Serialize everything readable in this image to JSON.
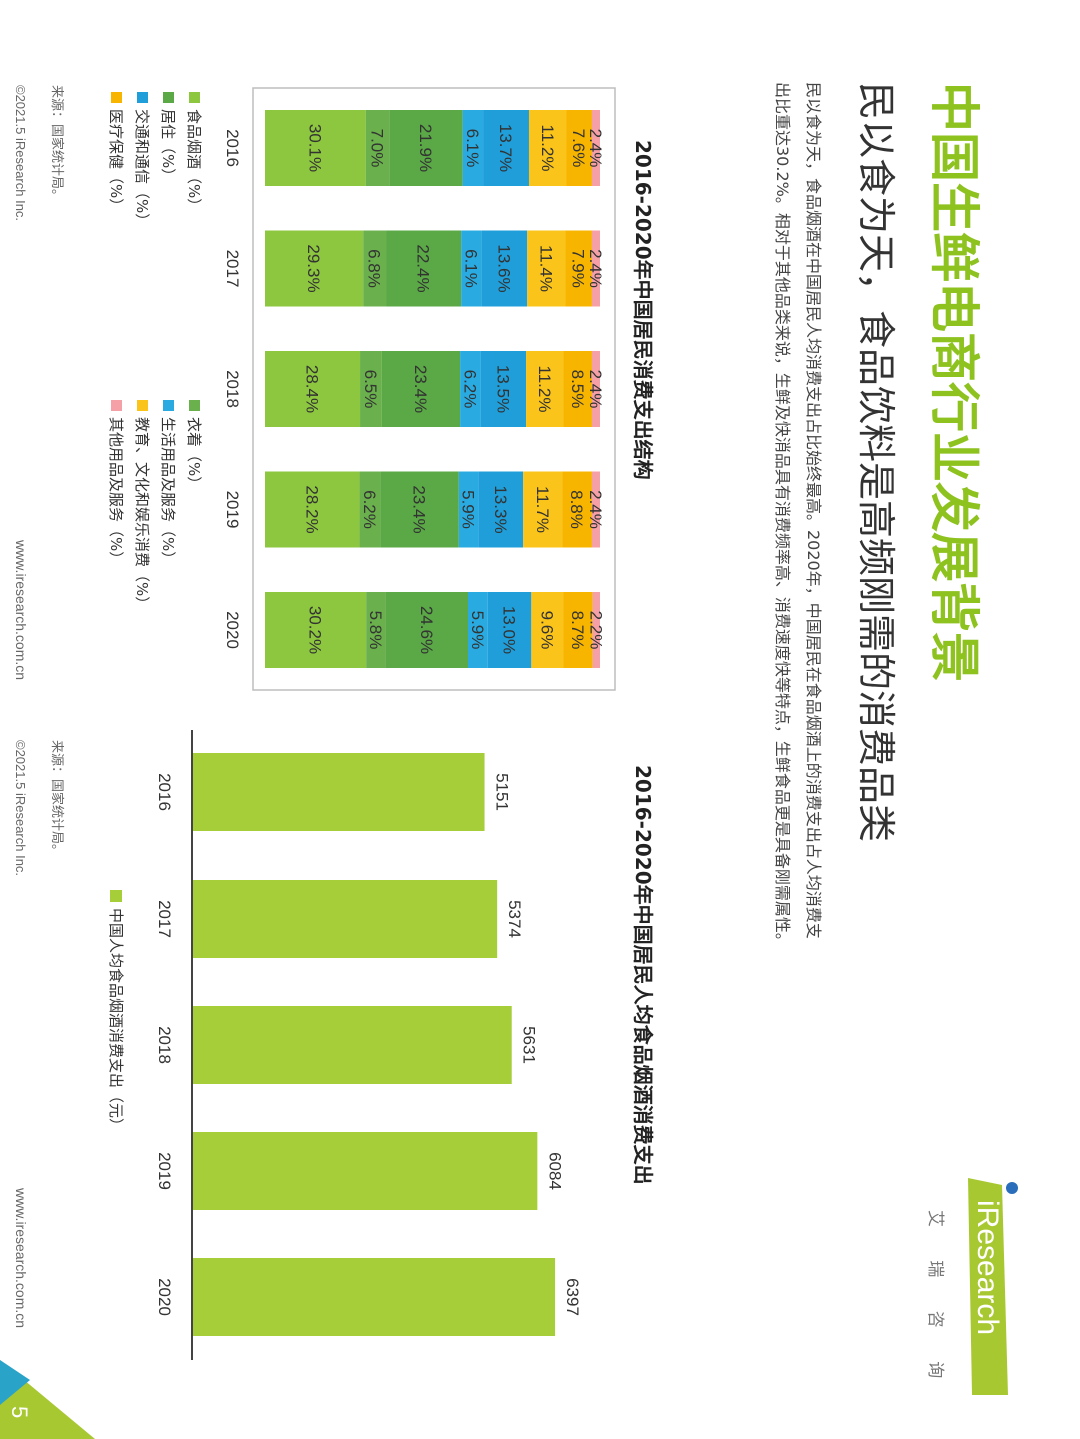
{
  "header": {
    "title": "中国生鲜电商行业发展背景",
    "subtitle": "民以食为天，食品饮料是高频刚需的消费品类",
    "body_line1": "民以食为天，食品烟酒在中国居民人均消费支出占比始终最高。2020年，中国居民在食品烟酒上的消费支出占人均消费支",
    "body_line2": "出比重达30.2%。相对于其他品类来说，生鲜及快消品具有消费频率高、消费速度快等特点，生鲜食品更是具备刚需属性。"
  },
  "logo": {
    "text": "iResearch",
    "cn": "艾 瑞 咨 询"
  },
  "colors": {
    "brand_green": "#a8c832",
    "title_green": "#8dc21f",
    "bar_green": "#a6ce39"
  },
  "footer": {
    "source": "来源：国家统计局。",
    "copyright": "©2021.5 iResearch Inc.",
    "url": "www.iresearch.com.cn",
    "page_number": "5"
  },
  "chart_data": [
    {
      "type": "bar",
      "stacked": true,
      "title": "2016-2020年中国居民消费支出结构",
      "categories": [
        "2016",
        "2017",
        "2018",
        "2019",
        "2020"
      ],
      "series": [
        {
          "name": "食品烟酒（%）",
          "color": "#8dc63f",
          "values": [
            30.1,
            29.3,
            28.4,
            28.2,
            30.2
          ]
        },
        {
          "name": "衣着（%）",
          "color": "#6ab04c",
          "values": [
            7.0,
            6.8,
            6.5,
            6.2,
            5.8
          ]
        },
        {
          "name": "居住（%）",
          "color": "#5aa846",
          "values": [
            21.9,
            22.4,
            23.4,
            23.4,
            24.6
          ]
        },
        {
          "name": "生活用品及服务（%）",
          "color": "#29abe2",
          "values": [
            6.1,
            6.1,
            6.2,
            5.9,
            5.9
          ]
        },
        {
          "name": "交通和通信（%）",
          "color": "#1f9ed9",
          "values": [
            13.7,
            13.6,
            13.5,
            13.3,
            13.0
          ]
        },
        {
          "name": "教育、文化和娱乐消费（%）",
          "color": "#fbc41a",
          "values": [
            11.2,
            11.4,
            11.2,
            11.7,
            9.6
          ]
        },
        {
          "name": "医疗保健（%）",
          "color": "#f7b500",
          "values": [
            7.6,
            7.9,
            8.5,
            8.8,
            8.7
          ]
        },
        {
          "name": "其他用品及服务（%）",
          "color": "#f4a0a6",
          "values": [
            2.4,
            2.4,
            2.4,
            2.4,
            2.2
          ]
        }
      ],
      "labels": [
        [
          "30.1%",
          "29.3%",
          "28.4%",
          "28.2%",
          "30.2%"
        ],
        [
          "7.0%",
          "6.8%",
          "6.5%",
          "6.2%",
          "5.8%"
        ],
        [
          "21.9%",
          "22.4%",
          "23.4%",
          "23.4%",
          "24.6%"
        ],
        [
          "6.1%",
          "6.1%",
          "6.2%",
          "5.9%",
          "5.9%"
        ],
        [
          "13.7%",
          "13.6%",
          "13.5%",
          "13.3%",
          "13.0%"
        ],
        [
          "11.2%",
          "11.4%",
          "11.2%",
          "11.7%",
          "9.6%"
        ],
        [
          "7.6%",
          "7.9%",
          "8.5%",
          "8.8%",
          "8.7%"
        ],
        [
          "2.4%",
          "2.4%",
          "2.4%",
          "2.4%",
          "2.2%"
        ]
      ],
      "legend_position": "bottom",
      "ylim": [
        0,
        100
      ]
    },
    {
      "type": "bar",
      "title": "2016-2020年中国居民人均食品烟酒消费支出",
      "categories": [
        "2016",
        "2017",
        "2018",
        "2019",
        "2020"
      ],
      "series": [
        {
          "name": "中国人均食品烟酒消费支出（元）",
          "color": "#a6ce39",
          "values": [
            5151,
            5374,
            5631,
            6084,
            6397
          ]
        }
      ],
      "labels": [
        "5151",
        "5374",
        "5631",
        "6084",
        "6397"
      ],
      "legend_position": "bottom",
      "ylim": [
        0,
        7200
      ]
    }
  ]
}
